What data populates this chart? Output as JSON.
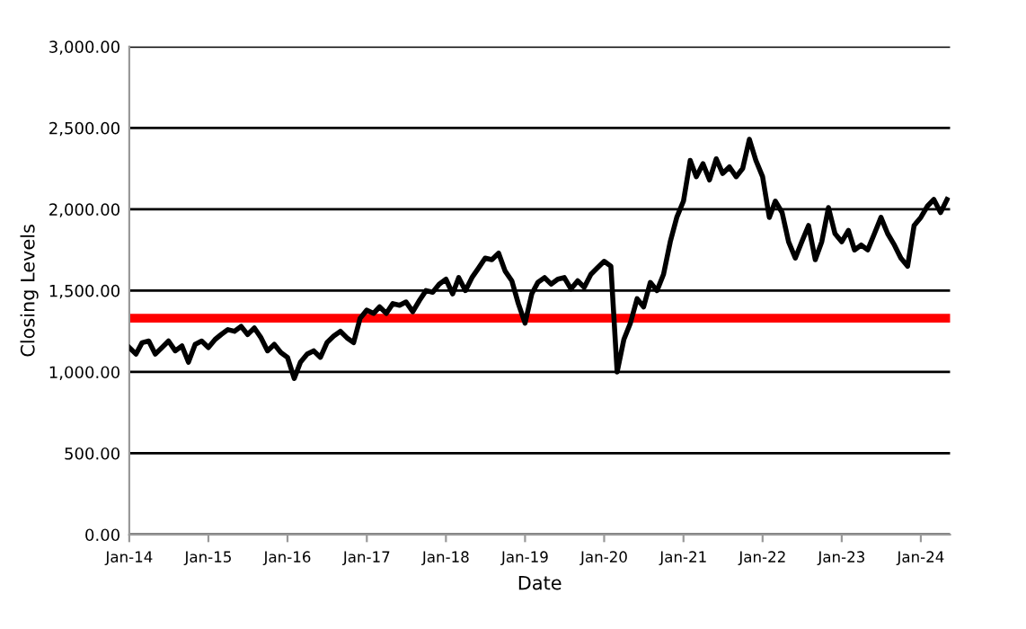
{
  "chart_data": {
    "type": "line",
    "xlabel": "Date",
    "ylabel": "Closing Levels",
    "x": [
      "2014-01",
      "2014-02",
      "2014-03",
      "2014-04",
      "2014-05",
      "2014-06",
      "2014-07",
      "2014-08",
      "2014-09",
      "2014-10",
      "2014-11",
      "2014-12",
      "2015-01",
      "2015-02",
      "2015-03",
      "2015-04",
      "2015-05",
      "2015-06",
      "2015-07",
      "2015-08",
      "2015-09",
      "2015-10",
      "2015-11",
      "2015-12",
      "2016-01",
      "2016-02",
      "2016-03",
      "2016-04",
      "2016-05",
      "2016-06",
      "2016-07",
      "2016-08",
      "2016-09",
      "2016-10",
      "2016-11",
      "2016-12",
      "2017-01",
      "2017-02",
      "2017-03",
      "2017-04",
      "2017-05",
      "2017-06",
      "2017-07",
      "2017-08",
      "2017-09",
      "2017-10",
      "2017-11",
      "2017-12",
      "2018-01",
      "2018-02",
      "2018-03",
      "2018-04",
      "2018-05",
      "2018-06",
      "2018-07",
      "2018-08",
      "2018-09",
      "2018-10",
      "2018-11",
      "2018-12",
      "2019-01",
      "2019-02",
      "2019-03",
      "2019-04",
      "2019-05",
      "2019-06",
      "2019-07",
      "2019-08",
      "2019-09",
      "2019-10",
      "2019-11",
      "2019-12",
      "2020-01",
      "2020-02",
      "2020-03",
      "2020-04",
      "2020-05",
      "2020-06",
      "2020-07",
      "2020-08",
      "2020-09",
      "2020-10",
      "2020-11",
      "2020-12",
      "2021-01",
      "2021-02",
      "2021-03",
      "2021-04",
      "2021-05",
      "2021-06",
      "2021-07",
      "2021-08",
      "2021-09",
      "2021-10",
      "2021-11",
      "2021-12",
      "2022-01",
      "2022-02",
      "2022-03",
      "2022-04",
      "2022-05",
      "2022-06",
      "2022-07",
      "2022-08",
      "2022-09",
      "2022-10",
      "2022-11",
      "2022-12",
      "2023-01",
      "2023-02",
      "2023-03",
      "2023-04",
      "2023-05",
      "2023-06",
      "2023-07",
      "2023-08",
      "2023-09",
      "2023-10",
      "2023-11",
      "2023-12",
      "2024-01",
      "2024-02",
      "2024-03",
      "2024-04",
      "2024-05"
    ],
    "series": [
      {
        "color": "#000000",
        "values": [
          1150,
          1110,
          1180,
          1190,
          1110,
          1150,
          1190,
          1130,
          1160,
          1060,
          1170,
          1190,
          1150,
          1200,
          1230,
          1260,
          1250,
          1280,
          1230,
          1270,
          1210,
          1130,
          1170,
          1120,
          1090,
          960,
          1060,
          1110,
          1130,
          1090,
          1180,
          1220,
          1250,
          1210,
          1180,
          1330,
          1380,
          1360,
          1400,
          1360,
          1420,
          1410,
          1430,
          1370,
          1440,
          1500,
          1490,
          1540,
          1570,
          1480,
          1580,
          1500,
          1580,
          1640,
          1700,
          1690,
          1730,
          1620,
          1560,
          1420,
          1300,
          1480,
          1550,
          1580,
          1540,
          1570,
          1580,
          1510,
          1560,
          1520,
          1600,
          1640,
          1680,
          1650,
          1000,
          1200,
          1300,
          1450,
          1400,
          1550,
          1500,
          1600,
          1800,
          1950,
          2050,
          2300,
          2200,
          2280,
          2180,
          2310,
          2220,
          2260,
          2200,
          2250,
          2430,
          2300,
          2200,
          1950,
          2050,
          1980,
          1800,
          1700,
          1800,
          1900,
          1690,
          1800,
          2010,
          1850,
          1800,
          1870,
          1750,
          1780,
          1750,
          1850,
          1950,
          1850,
          1780,
          1700,
          1650,
          1900,
          1950,
          2020,
          2060,
          1980,
          2060
        ]
      }
    ],
    "xlim": [
      "2014-01-01",
      "2024-05-15"
    ],
    "xticks": [
      {
        "value": "2014-01-01",
        "label": "Jan-14"
      },
      {
        "value": "2015-01-01",
        "label": "Jan-15"
      },
      {
        "value": "2016-01-01",
        "label": "Jan-16"
      },
      {
        "value": "2017-01-01",
        "label": "Jan-17"
      },
      {
        "value": "2018-01-01",
        "label": "Jan-18"
      },
      {
        "value": "2019-01-01",
        "label": "Jan-19"
      },
      {
        "value": "2020-01-01",
        "label": "Jan-20"
      },
      {
        "value": "2021-01-01",
        "label": "Jan-21"
      },
      {
        "value": "2022-01-01",
        "label": "Jan-22"
      },
      {
        "value": "2023-01-01",
        "label": "Jan-23"
      },
      {
        "value": "2024-01-01",
        "label": "Jan-24"
      }
    ],
    "ylim": [
      0,
      3000
    ],
    "yticks": [
      {
        "value": 0,
        "label": "0.00"
      },
      {
        "value": 500,
        "label": "500.00"
      },
      {
        "value": 1000,
        "label": "1,000.00"
      },
      {
        "value": 1500,
        "label": "1,500.00"
      },
      {
        "value": 2000,
        "label": "2,000.00"
      },
      {
        "value": 2500,
        "label": "2,500.00"
      },
      {
        "value": 3000,
        "label": "3,000.00"
      }
    ],
    "ref_lines": [
      {
        "axis": "y",
        "value": 1330,
        "color": "#ff0000"
      }
    ],
    "grid": "y",
    "line_style": "solid",
    "marker": "none"
  }
}
